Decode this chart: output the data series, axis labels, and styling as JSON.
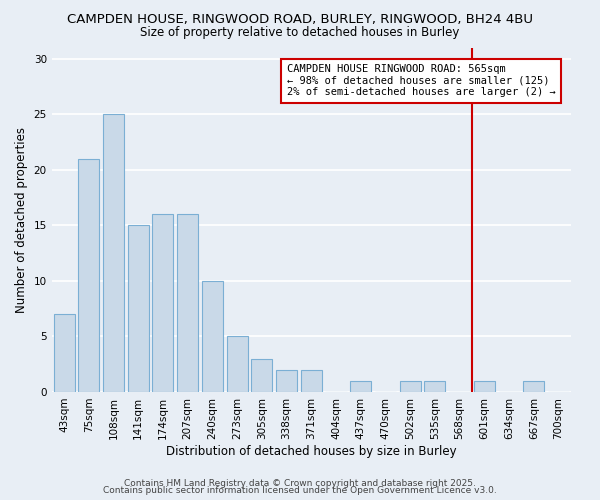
{
  "title_line1": "CAMPDEN HOUSE, RINGWOOD ROAD, BURLEY, RINGWOOD, BH24 4BU",
  "title_line2": "Size of property relative to detached houses in Burley",
  "xlabel": "Distribution of detached houses by size in Burley",
  "ylabel": "Number of detached properties",
  "bar_labels": [
    "43sqm",
    "75sqm",
    "108sqm",
    "141sqm",
    "174sqm",
    "207sqm",
    "240sqm",
    "273sqm",
    "305sqm",
    "338sqm",
    "371sqm",
    "404sqm",
    "437sqm",
    "470sqm",
    "502sqm",
    "535sqm",
    "568sqm",
    "601sqm",
    "634sqm",
    "667sqm",
    "700sqm"
  ],
  "bar_values": [
    7,
    21,
    25,
    15,
    16,
    16,
    10,
    5,
    3,
    2,
    2,
    0,
    1,
    0,
    1,
    1,
    0,
    1,
    0,
    1,
    0
  ],
  "bar_color": "#c9d9e8",
  "bar_edge_color": "#7bafd4",
  "background_color": "#e8eef5",
  "grid_color": "#ffffff",
  "vline_x_index": 16.5,
  "vline_color": "#cc0000",
  "annotation_text": "CAMPDEN HOUSE RINGWOOD ROAD: 565sqm\n← 98% of detached houses are smaller (125)\n2% of semi-detached houses are larger (2) →",
  "annotation_box_facecolor": "#ffffff",
  "annotation_box_edgecolor": "#cc0000",
  "ylim": [
    0,
    31
  ],
  "yticks": [
    0,
    5,
    10,
    15,
    20,
    25,
    30
  ],
  "footer_line1": "Contains HM Land Registry data © Crown copyright and database right 2025.",
  "footer_line2": "Contains public sector information licensed under the Open Government Licence v3.0.",
  "title_fontsize": 9.5,
  "subtitle_fontsize": 8.5,
  "axis_label_fontsize": 8.5,
  "tick_fontsize": 7.5,
  "annotation_fontsize": 7.5,
  "footer_fontsize": 6.5
}
